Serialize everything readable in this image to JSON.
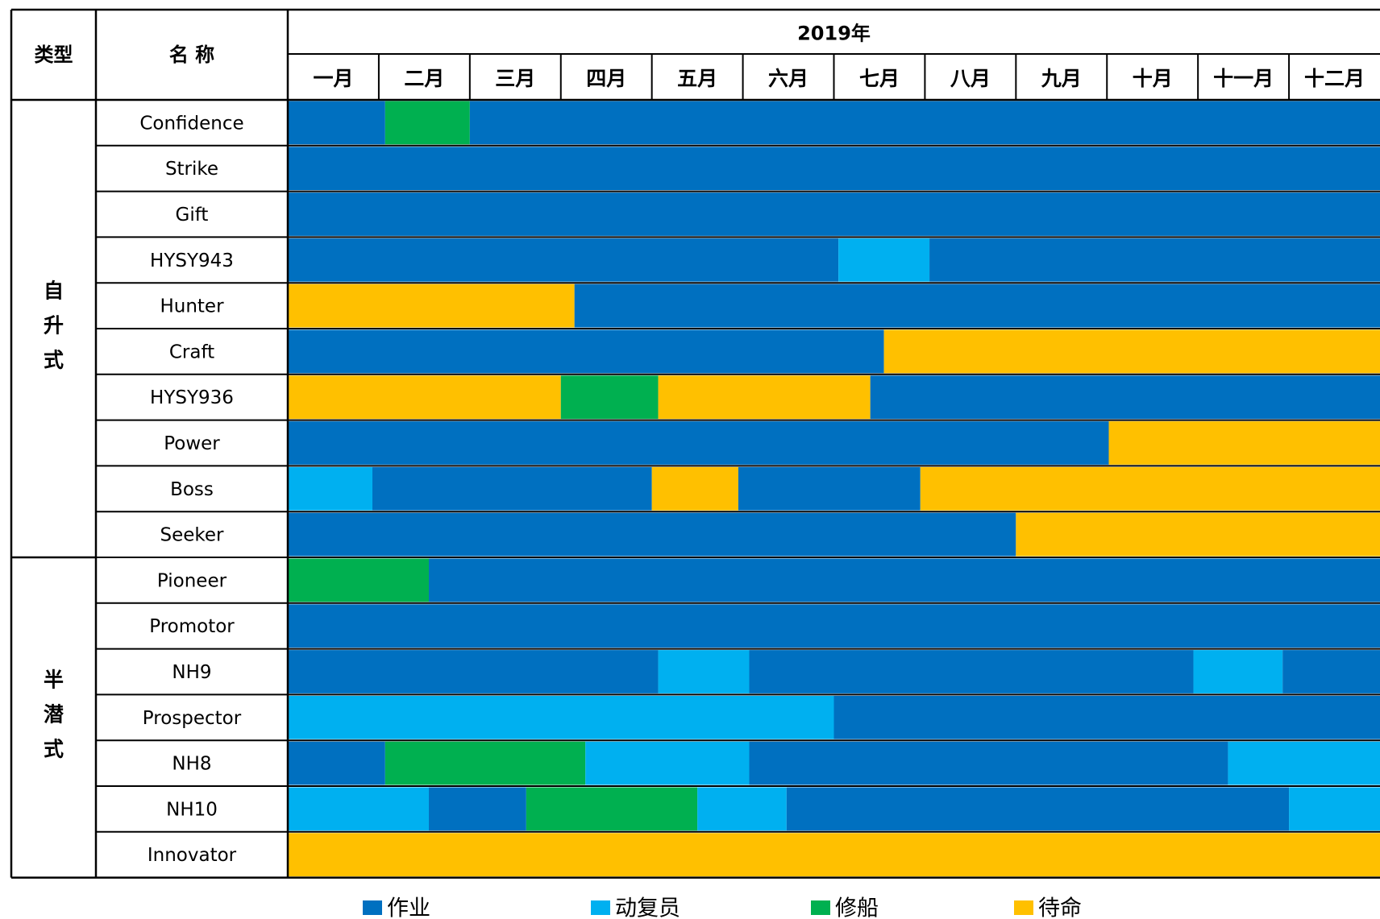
{
  "chart_data": {
    "type": "gantt",
    "header": {
      "type_label": "类型",
      "name_label": "名 称",
      "year_label": "2019年"
    },
    "months": [
      "一月",
      "二月",
      "三月",
      "四月",
      "五月",
      "六月",
      "七月",
      "八月",
      "九月",
      "十月",
      "十一月",
      "十二月"
    ],
    "status_colors": {
      "作业": "#0070C0",
      "动复员": "#00B0F0",
      "修船": "#00B050",
      "待命": "#FFC000"
    },
    "legend": [
      "作业",
      "动复员",
      "修船",
      "待命"
    ],
    "groups": [
      {
        "label": "自升式",
        "rows": [
          {
            "name": "Confidence",
            "segments": [
              {
                "status": "作业",
                "start": 0.0,
                "end": 1.07
              },
              {
                "status": "修船",
                "start": 1.07,
                "end": 2.0
              },
              {
                "status": "作业",
                "start": 2.0,
                "end": 12.0
              }
            ]
          },
          {
            "name": "Strike",
            "segments": [
              {
                "status": "作业",
                "start": 0.0,
                "end": 12.0
              }
            ]
          },
          {
            "name": "Gift",
            "segments": [
              {
                "status": "作业",
                "start": 0.0,
                "end": 12.0
              }
            ]
          },
          {
            "name": "HYSY943",
            "segments": [
              {
                "status": "作业",
                "start": 0.0,
                "end": 6.05
              },
              {
                "status": "动复员",
                "start": 6.05,
                "end": 7.05
              },
              {
                "status": "作业",
                "start": 7.05,
                "end": 12.0
              }
            ]
          },
          {
            "name": "Hunter",
            "segments": [
              {
                "status": "待命",
                "start": 0.0,
                "end": 3.15
              },
              {
                "status": "作业",
                "start": 3.15,
                "end": 12.0
              }
            ]
          },
          {
            "name": "Craft",
            "segments": [
              {
                "status": "作业",
                "start": 0.0,
                "end": 6.55
              },
              {
                "status": "待命",
                "start": 6.55,
                "end": 12.0
              }
            ]
          },
          {
            "name": "HYSY936",
            "segments": [
              {
                "status": "待命",
                "start": 0.0,
                "end": 3.0
              },
              {
                "status": "修船",
                "start": 3.0,
                "end": 4.07
              },
              {
                "status": "待命",
                "start": 4.07,
                "end": 6.4
              },
              {
                "status": "作业",
                "start": 6.4,
                "end": 12.0
              }
            ]
          },
          {
            "name": "Power",
            "segments": [
              {
                "status": "作业",
                "start": 0.0,
                "end": 9.02
              },
              {
                "status": "待命",
                "start": 9.02,
                "end": 12.0
              }
            ]
          },
          {
            "name": "Boss",
            "segments": [
              {
                "status": "动复员",
                "start": 0.0,
                "end": 0.93
              },
              {
                "status": "作业",
                "start": 0.93,
                "end": 4.0
              },
              {
                "status": "待命",
                "start": 4.0,
                "end": 4.95
              },
              {
                "status": "作业",
                "start": 4.95,
                "end": 6.95
              },
              {
                "status": "待命",
                "start": 6.95,
                "end": 12.0
              }
            ]
          },
          {
            "name": "Seeker",
            "segments": [
              {
                "status": "作业",
                "start": 0.0,
                "end": 8.0
              },
              {
                "status": "待命",
                "start": 8.0,
                "end": 12.0
              }
            ]
          }
        ]
      },
      {
        "label": "半潜式",
        "rows": [
          {
            "name": "Pioneer",
            "segments": [
              {
                "status": "修船",
                "start": 0.0,
                "end": 1.55
              },
              {
                "status": "作业",
                "start": 1.55,
                "end": 12.0
              }
            ]
          },
          {
            "name": "Promotor",
            "segments": [
              {
                "status": "作业",
                "start": 0.0,
                "end": 12.0
              }
            ]
          },
          {
            "name": "NH9",
            "segments": [
              {
                "status": "作业",
                "start": 0.0,
                "end": 4.07
              },
              {
                "status": "动复员",
                "start": 4.07,
                "end": 5.07
              },
              {
                "status": "作业",
                "start": 5.07,
                "end": 9.95
              },
              {
                "status": "动复员",
                "start": 9.95,
                "end": 10.93
              },
              {
                "status": "作业",
                "start": 10.93,
                "end": 12.0
              }
            ]
          },
          {
            "name": "Prospector",
            "segments": [
              {
                "status": "动复员",
                "start": 0.0,
                "end": 6.0
              },
              {
                "status": "作业",
                "start": 6.0,
                "end": 12.0
              }
            ]
          },
          {
            "name": "NH8",
            "segments": [
              {
                "status": "作业",
                "start": 0.0,
                "end": 1.07
              },
              {
                "status": "修船",
                "start": 1.07,
                "end": 3.27
              },
              {
                "status": "动复员",
                "start": 3.27,
                "end": 5.07
              },
              {
                "status": "作业",
                "start": 5.07,
                "end": 10.33
              },
              {
                "status": "动复员",
                "start": 10.33,
                "end": 12.0
              }
            ]
          },
          {
            "name": "NH10",
            "segments": [
              {
                "status": "动复员",
                "start": 0.0,
                "end": 1.55
              },
              {
                "status": "作业",
                "start": 1.55,
                "end": 2.62
              },
              {
                "status": "修船",
                "start": 2.62,
                "end": 4.5
              },
              {
                "status": "动复员",
                "start": 4.5,
                "end": 5.48
              },
              {
                "status": "作业",
                "start": 5.48,
                "end": 11.0
              },
              {
                "status": "动复员",
                "start": 11.0,
                "end": 12.0
              }
            ]
          },
          {
            "name": "Innovator",
            "segments": [
              {
                "status": "待命",
                "start": 0.0,
                "end": 12.0
              }
            ]
          }
        ]
      }
    ]
  }
}
